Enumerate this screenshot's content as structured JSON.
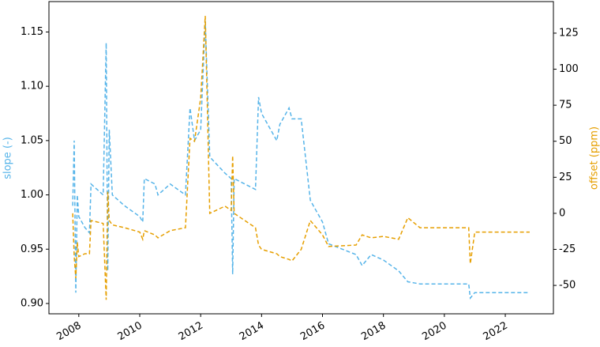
{
  "chart_data": {
    "type": "line",
    "x": [
      2007.8,
      2007.85,
      2007.9,
      2007.95,
      2008.0,
      2008.2,
      2008.35,
      2008.4,
      2008.8,
      2008.9,
      2008.95,
      2009.0,
      2009.1,
      2009.5,
      2010.0,
      2010.1,
      2010.15,
      2010.5,
      2010.6,
      2011.0,
      2011.5,
      2011.65,
      2011.8,
      2012.0,
      2012.15,
      2012.3,
      2012.8,
      2013.0,
      2013.05,
      2013.1,
      2013.8,
      2013.9,
      2014.0,
      2014.5,
      2014.6,
      2014.9,
      2015.0,
      2015.3,
      2015.6,
      2016.0,
      2016.2,
      2017.1,
      2017.3,
      2017.6,
      2018.0,
      2018.5,
      2018.8,
      2019.2,
      2020.8,
      2020.85,
      2021.0,
      2022.8
    ],
    "series": [
      {
        "name": "slope (-)",
        "color": "#56b4e9",
        "axis": "y",
        "values": [
          0.99,
          1.05,
          0.91,
          1.0,
          0.98,
          0.97,
          0.965,
          1.01,
          1.0,
          1.14,
          0.93,
          1.06,
          1.0,
          0.99,
          0.98,
          0.975,
          1.015,
          1.01,
          1.0,
          1.01,
          1.0,
          1.08,
          1.05,
          1.06,
          1.16,
          1.035,
          1.02,
          1.015,
          0.927,
          1.015,
          1.005,
          1.09,
          1.075,
          1.05,
          1.065,
          1.08,
          1.07,
          1.07,
          0.995,
          0.975,
          0.955,
          0.945,
          0.935,
          0.945,
          0.94,
          0.93,
          0.92,
          0.918,
          0.918,
          0.905,
          0.91,
          0.91
        ]
      },
      {
        "name": "offset (ppm)",
        "color": "#e69f00",
        "axis": "y2",
        "values": [
          0,
          -30,
          -45,
          -20,
          -30,
          -28,
          -28,
          -5,
          -7,
          -60,
          15,
          -5,
          -8,
          -10,
          -13,
          -18,
          -12,
          -15,
          -17,
          -12,
          -10,
          52,
          50,
          80,
          137,
          0,
          5,
          2,
          40,
          0,
          -10,
          -22,
          -25,
          -28,
          -30,
          -32,
          -33,
          -25,
          -5,
          -15,
          -23,
          -22,
          -15,
          -17,
          -16,
          -18,
          -3,
          -10,
          -10,
          -35,
          -13,
          -13
        ]
      }
    ],
    "xlim": [
      2007.02,
      2023.58
    ],
    "xticks": [
      2008,
      2010,
      2012,
      2014,
      2016,
      2018,
      2020,
      2022
    ],
    "ylim": [
      0.8905,
      1.178
    ],
    "yticks": [
      {
        "value": 0.9,
        "label": "0.90"
      },
      {
        "value": 0.95,
        "label": "0.95"
      },
      {
        "value": 1.0,
        "label": "1.00"
      },
      {
        "value": 1.05,
        "label": "1.05"
      },
      {
        "value": 1.1,
        "label": "1.10"
      },
      {
        "value": 1.15,
        "label": "1.15"
      }
    ],
    "y2lim": [
      -69.7,
      146.9
    ],
    "y2ticks": [
      -50,
      -25,
      0,
      25,
      50,
      75,
      100,
      125
    ]
  }
}
